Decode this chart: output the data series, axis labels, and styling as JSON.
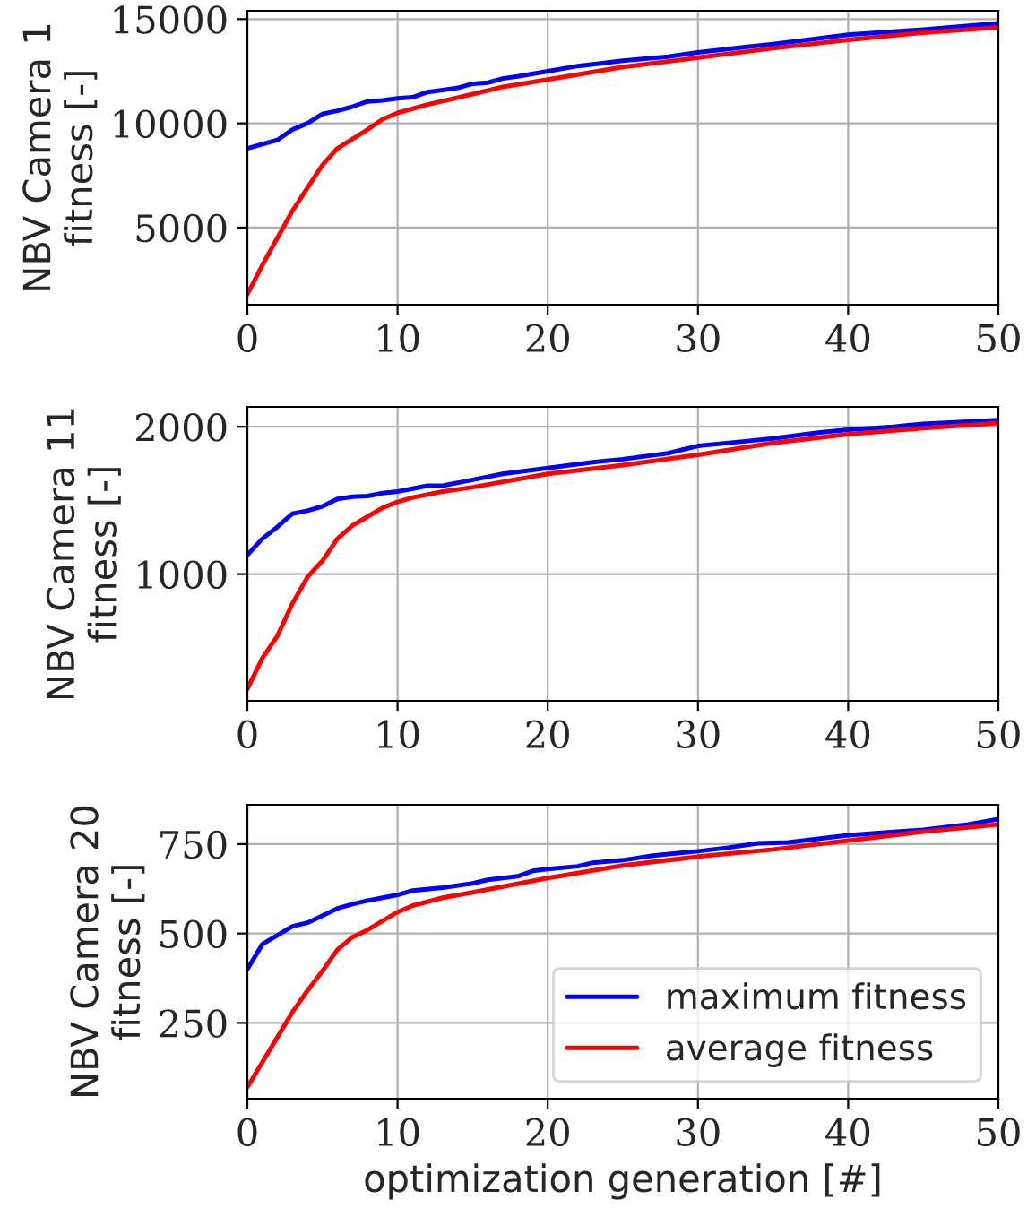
{
  "chart_data": [
    {
      "type": "line",
      "ylabel": "NBV Camera 1\nfitness [-]",
      "xlim": [
        0,
        50
      ],
      "xticks": [
        0,
        10,
        20,
        30,
        40,
        50
      ],
      "ylim": [
        1300,
        15400
      ],
      "yticks": [
        5000,
        10000,
        15000
      ],
      "grid": true,
      "legend": false,
      "series": [
        {
          "color": "#0000ff",
          "x": [
            0,
            1,
            2,
            3,
            4,
            5,
            6,
            7,
            8,
            9,
            10,
            11,
            12,
            14,
            15,
            16,
            17,
            18,
            20,
            22,
            25,
            28,
            30,
            33,
            35,
            40,
            45,
            50
          ],
          "values": [
            8800,
            9000,
            9200,
            9700,
            10000,
            10450,
            10600,
            10800,
            11050,
            11100,
            11200,
            11250,
            11500,
            11700,
            11900,
            11950,
            12150,
            12250,
            12500,
            12750,
            13000,
            13200,
            13400,
            13650,
            13800,
            14250,
            14500,
            14800
          ]
        },
        {
          "color": "#ff0000",
          "x": [
            0,
            1,
            2,
            3,
            4,
            5,
            6,
            7,
            8,
            9,
            10,
            12,
            15,
            17,
            20,
            25,
            30,
            35,
            40,
            45,
            50
          ],
          "values": [
            1800,
            3200,
            4500,
            5800,
            6900,
            8000,
            8800,
            9250,
            9700,
            10200,
            10500,
            10900,
            11400,
            11750,
            12100,
            12700,
            13150,
            13600,
            14000,
            14350,
            14600
          ]
        }
      ]
    },
    {
      "type": "line",
      "ylabel": "NBV Camera 11\nfitness [-]",
      "xlim": [
        0,
        50
      ],
      "xticks": [
        0,
        10,
        20,
        30,
        40,
        50
      ],
      "ylim": [
        140,
        2135
      ],
      "yticks": [
        1000,
        2000
      ],
      "grid": true,
      "legend": false,
      "series": [
        {
          "color": "#0000ff",
          "x": [
            0,
            1,
            2,
            3,
            4,
            5,
            6,
            7,
            8,
            9,
            10,
            12,
            13,
            15,
            17,
            20,
            23,
            25,
            28,
            30,
            33,
            35,
            38,
            40,
            43,
            45,
            50
          ],
          "values": [
            1130,
            1240,
            1320,
            1410,
            1430,
            1460,
            1510,
            1525,
            1530,
            1550,
            1560,
            1600,
            1600,
            1640,
            1680,
            1720,
            1760,
            1780,
            1820,
            1870,
            1900,
            1920,
            1960,
            1980,
            2000,
            2020,
            2045
          ]
        },
        {
          "color": "#ff0000",
          "x": [
            0,
            1,
            2,
            3,
            4,
            5,
            6,
            7,
            8,
            9,
            10,
            11,
            13,
            15,
            20,
            25,
            30,
            35,
            40,
            45,
            50
          ],
          "values": [
            220,
            430,
            580,
            800,
            980,
            1090,
            1240,
            1330,
            1390,
            1450,
            1490,
            1520,
            1560,
            1590,
            1680,
            1740,
            1810,
            1890,
            1950,
            1990,
            2025
          ]
        }
      ]
    },
    {
      "type": "line",
      "xlabel": "optimization generation [#]",
      "ylabel": "NBV Camera 20\nfitness [-]",
      "xlim": [
        0,
        50
      ],
      "xticks": [
        0,
        10,
        20,
        30,
        40,
        50
      ],
      "ylim": [
        38,
        860
      ],
      "yticks": [
        250,
        500,
        750
      ],
      "grid": true,
      "legend": "lower right",
      "series": [
        {
          "name": "maximum fitness",
          "color": "#0000ff",
          "x": [
            0,
            1,
            2,
            3,
            4,
            5,
            6,
            7,
            8,
            10,
            11,
            13,
            15,
            16,
            18,
            19,
            20,
            22,
            23,
            25,
            27,
            30,
            32,
            34,
            36,
            40,
            45,
            48,
            50
          ],
          "values": [
            400,
            470,
            495,
            520,
            530,
            550,
            570,
            582,
            592,
            608,
            620,
            628,
            640,
            650,
            660,
            675,
            680,
            688,
            698,
            705,
            718,
            730,
            740,
            752,
            755,
            775,
            790,
            805,
            820
          ]
        },
        {
          "name": "average fitness",
          "color": "#ff0000",
          "x": [
            0,
            1,
            2,
            3,
            4,
            5,
            6,
            7,
            8,
            9,
            10,
            11,
            13,
            15,
            20,
            25,
            30,
            35,
            40,
            45,
            50
          ],
          "values": [
            70,
            140,
            210,
            280,
            340,
            395,
            455,
            490,
            510,
            535,
            560,
            578,
            600,
            615,
            655,
            690,
            715,
            735,
            760,
            785,
            805
          ]
        }
      ]
    }
  ]
}
